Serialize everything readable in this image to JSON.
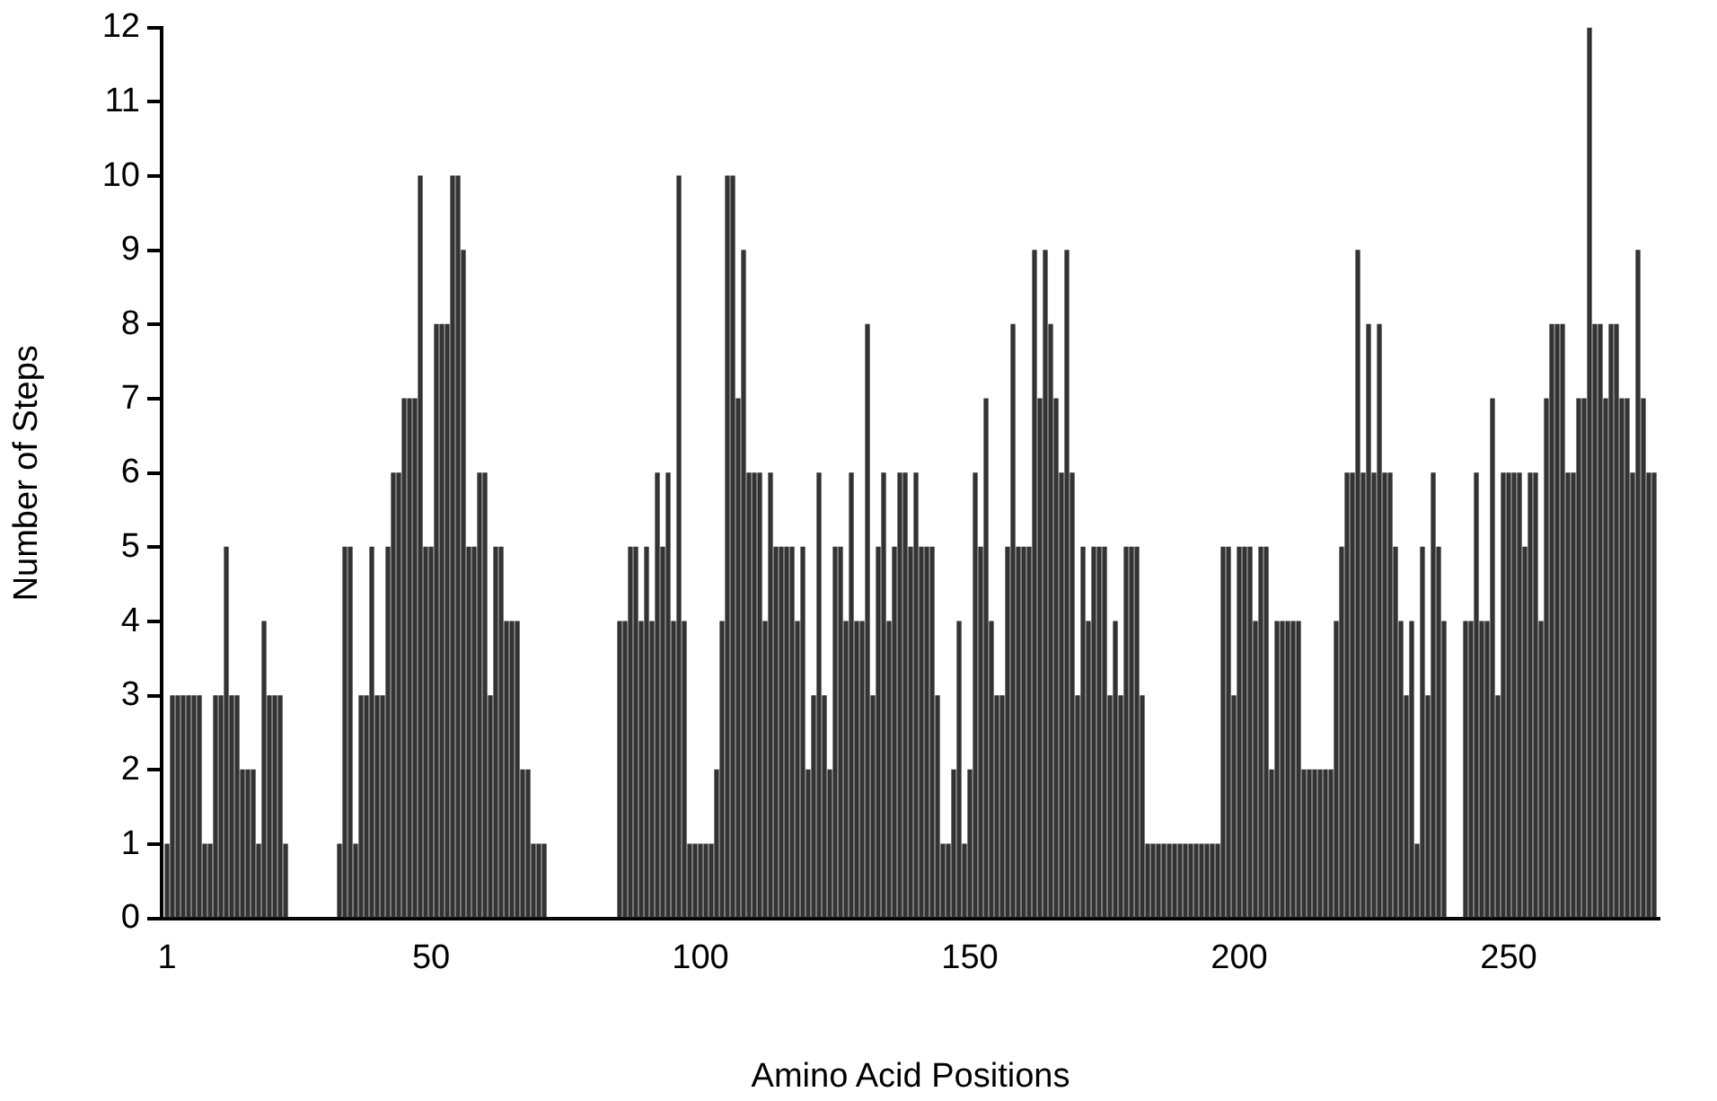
{
  "chart_data": {
    "type": "bar",
    "xlabel": "Amino Acid Positions",
    "ylabel": "Number of Steps",
    "color": "#333333",
    "x": [
      1,
      2,
      3,
      4,
      5,
      6,
      7,
      8,
      9,
      10,
      11,
      12,
      13,
      14,
      15,
      16,
      17,
      18,
      19,
      20,
      21,
      22,
      23,
      24,
      25,
      26,
      27,
      28,
      29,
      30,
      31,
      32,
      33,
      34,
      35,
      36,
      37,
      38,
      39,
      40,
      41,
      42,
      43,
      44,
      45,
      46,
      47,
      48,
      49,
      50,
      51,
      52,
      53,
      54,
      55,
      56,
      57,
      58,
      59,
      60,
      61,
      62,
      63,
      64,
      65,
      66,
      67,
      68,
      69,
      70,
      71,
      72,
      73,
      74,
      75,
      76,
      77,
      78,
      79,
      80,
      81,
      82,
      83,
      84,
      85,
      86,
      87,
      88,
      89,
      90,
      91,
      92,
      93,
      94,
      95,
      96,
      97,
      98,
      99,
      100,
      101,
      102,
      103,
      104,
      105,
      106,
      107,
      108,
      109,
      110,
      111,
      112,
      113,
      114,
      115,
      116,
      117,
      118,
      119,
      120,
      121,
      122,
      123,
      124,
      125,
      126,
      127,
      128,
      129,
      130,
      131,
      132,
      133,
      134,
      135,
      136,
      137,
      138,
      139,
      140,
      141,
      142,
      143,
      144,
      145,
      146,
      147,
      148,
      149,
      150,
      151,
      152,
      153,
      154,
      155,
      156,
      157,
      158,
      159,
      160,
      161,
      162,
      163,
      164,
      165,
      166,
      167,
      168,
      169,
      170,
      171,
      172,
      173,
      174,
      175,
      176,
      177,
      178,
      179,
      180,
      181,
      182,
      183,
      184,
      185,
      186,
      187,
      188,
      189,
      190,
      191,
      192,
      193,
      194,
      195,
      196,
      197,
      198,
      199,
      200,
      201,
      202,
      203,
      204,
      205,
      206,
      207,
      208,
      209,
      210,
      211,
      212,
      213,
      214,
      215,
      216,
      217,
      218,
      219,
      220,
      221,
      222,
      223,
      224,
      225,
      226,
      227,
      228,
      229,
      230,
      231,
      232,
      233,
      234,
      235,
      236,
      237,
      238,
      239,
      240,
      241,
      242,
      243,
      244,
      245,
      246,
      247,
      248,
      249,
      250,
      251,
      252,
      253,
      254,
      255,
      256,
      257,
      258,
      259,
      260,
      261,
      262,
      263,
      264,
      265,
      266,
      267,
      268,
      269,
      270,
      271,
      272,
      273,
      274,
      275,
      276,
      277
    ],
    "values": [
      1,
      3,
      3,
      3,
      3,
      3,
      3,
      1,
      1,
      3,
      3,
      5,
      3,
      3,
      2,
      2,
      2,
      1,
      4,
      3,
      3,
      3,
      1,
      0,
      0,
      0,
      0,
      0,
      0,
      0,
      0,
      0,
      1,
      5,
      5,
      1,
      3,
      3,
      5,
      3,
      3,
      5,
      6,
      6,
      7,
      7,
      7,
      10,
      5,
      5,
      8,
      8,
      8,
      10,
      10,
      9,
      5,
      5,
      6,
      6,
      3,
      5,
      5,
      4,
      4,
      4,
      2,
      2,
      1,
      1,
      1,
      0,
      0,
      0,
      0,
      0,
      0,
      0,
      0,
      0,
      0,
      0,
      0,
      0,
      4,
      4,
      5,
      5,
      4,
      5,
      4,
      6,
      5,
      6,
      4,
      10,
      4,
      1,
      1,
      1,
      1,
      1,
      2,
      4,
      10,
      10,
      7,
      9,
      6,
      6,
      6,
      4,
      6,
      5,
      5,
      5,
      5,
      4,
      5,
      2,
      3,
      6,
      3,
      2,
      5,
      5,
      4,
      6,
      4,
      4,
      8,
      3,
      5,
      6,
      4,
      5,
      6,
      6,
      5,
      6,
      5,
      5,
      5,
      3,
      1,
      1,
      2,
      4,
      1,
      2,
      6,
      5,
      7,
      4,
      3,
      3,
      5,
      8,
      5,
      5,
      5,
      9,
      7,
      9,
      8,
      7,
      6,
      9,
      6,
      3,
      5,
      4,
      5,
      5,
      5,
      3,
      4,
      3,
      5,
      5,
      5,
      3,
      1,
      1,
      1,
      1,
      1,
      1,
      1,
      1,
      1,
      1,
      1,
      1,
      1,
      1,
      5,
      5,
      3,
      5,
      5,
      5,
      4,
      5,
      5,
      2,
      4,
      4,
      4,
      4,
      4,
      2,
      2,
      2,
      2,
      2,
      2,
      4,
      5,
      6,
      6,
      9,
      6,
      8,
      6,
      8,
      6,
      6,
      5,
      4,
      3,
      4,
      1,
      5,
      3,
      6,
      5,
      4,
      0,
      0,
      0,
      4,
      4,
      6,
      4,
      4,
      7,
      3,
      6,
      6,
      6,
      6,
      5,
      6,
      6,
      4,
      7,
      8,
      8,
      8,
      6,
      6,
      7,
      7,
      12,
      8,
      8,
      7,
      8,
      8,
      7,
      7,
      6,
      9,
      7,
      6,
      6
    ],
    "xlim": [
      0,
      278
    ],
    "xticks": [
      1,
      50,
      100,
      150,
      200,
      250
    ],
    "ylim": [
      0,
      12
    ],
    "yticks": [
      0,
      1,
      2,
      3,
      4,
      5,
      6,
      7,
      8,
      9,
      10,
      11,
      12
    ]
  }
}
